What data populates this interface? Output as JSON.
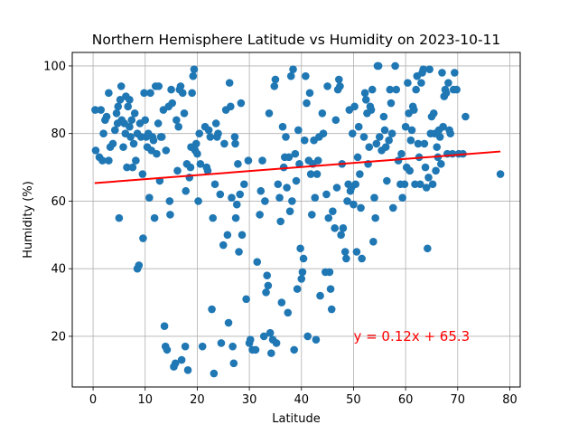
{
  "chart_data": {
    "type": "scatter",
    "title": "Northern Hemisphere Latitude vs Humidity on 2023-10-11",
    "xlabel": "Latitude",
    "ylabel": "Humidity (%)",
    "xlim": [
      -4,
      82
    ],
    "ylim": [
      5,
      104
    ],
    "xticks": [
      0,
      10,
      20,
      30,
      40,
      50,
      60,
      70,
      80
    ],
    "yticks": [
      20,
      40,
      60,
      80,
      100
    ],
    "grid": true,
    "marker_color": "#1f77b4",
    "regression": {
      "slope": 0.12,
      "intercept": 65.3,
      "x_range": [
        0.3,
        78.2
      ],
      "color": "#ff0000",
      "equation": "y = 0.12x + 65.3",
      "label_x": 50,
      "label_y": 20
    },
    "points": [
      [
        0.4,
        87
      ],
      [
        0.5,
        75
      ],
      [
        1.2,
        73
      ],
      [
        1.5,
        87
      ],
      [
        1.8,
        72
      ],
      [
        2.0,
        80
      ],
      [
        2.3,
        84
      ],
      [
        2.6,
        85
      ],
      [
        3.0,
        92
      ],
      [
        3.0,
        72
      ],
      [
        3.3,
        76
      ],
      [
        3.8,
        77
      ],
      [
        4.2,
        81
      ],
      [
        4.5,
        86
      ],
      [
        4.7,
        83
      ],
      [
        4.8,
        88
      ],
      [
        5.0,
        55
      ],
      [
        5.2,
        90
      ],
      [
        5.4,
        94
      ],
      [
        5.5,
        84
      ],
      [
        5.8,
        76
      ],
      [
        6.0,
        83
      ],
      [
        6.2,
        80
      ],
      [
        6.3,
        91
      ],
      [
        6.5,
        70
      ],
      [
        6.7,
        88
      ],
      [
        7.0,
        90
      ],
      [
        7.0,
        82
      ],
      [
        7.2,
        79
      ],
      [
        7.4,
        84
      ],
      [
        7.6,
        70
      ],
      [
        7.8,
        77
      ],
      [
        8.0,
        86
      ],
      [
        8.2,
        72
      ],
      [
        8.5,
        80
      ],
      [
        8.5,
        40
      ],
      [
        8.8,
        41
      ],
      [
        9.0,
        83
      ],
      [
        9.2,
        79
      ],
      [
        9.5,
        68
      ],
      [
        9.6,
        49
      ],
      [
        9.8,
        92
      ],
      [
        10.0,
        84
      ],
      [
        10.2,
        79
      ],
      [
        10.4,
        76
      ],
      [
        10.6,
        80
      ],
      [
        10.8,
        61
      ],
      [
        11.0,
        92
      ],
      [
        11.2,
        75
      ],
      [
        11.4,
        79
      ],
      [
        11.6,
        78
      ],
      [
        11.8,
        55
      ],
      [
        12.0,
        94
      ],
      [
        12.2,
        74
      ],
      [
        12.5,
        83
      ],
      [
        12.6,
        94
      ],
      [
        12.8,
        66
      ],
      [
        13.0,
        79
      ],
      [
        13.2,
        79
      ],
      [
        13.5,
        87
      ],
      [
        13.7,
        23
      ],
      [
        13.9,
        17
      ],
      [
        14.0,
        75
      ],
      [
        14.2,
        16
      ],
      [
        14.5,
        88
      ],
      [
        14.7,
        60
      ],
      [
        14.8,
        56
      ],
      [
        15.0,
        93
      ],
      [
        15.2,
        89
      ],
      [
        15.5,
        11
      ],
      [
        15.8,
        12
      ],
      [
        16.0,
        84
      ],
      [
        16.2,
        69
      ],
      [
        16.4,
        82
      ],
      [
        16.6,
        93
      ],
      [
        16.8,
        94
      ],
      [
        17.0,
        13
      ],
      [
        17.2,
        92
      ],
      [
        17.5,
        86
      ],
      [
        17.7,
        17
      ],
      [
        17.8,
        63
      ],
      [
        18.0,
        71
      ],
      [
        18.2,
        10
      ],
      [
        18.5,
        67
      ],
      [
        18.7,
        70
      ],
      [
        18.8,
        76
      ],
      [
        19.0,
        92
      ],
      [
        19.2,
        97
      ],
      [
        19.4,
        99
      ],
      [
        19.6,
        75
      ],
      [
        19.8,
        77
      ],
      [
        20.0,
        74
      ],
      [
        20.2,
        60
      ],
      [
        20.4,
        80
      ],
      [
        20.6,
        71
      ],
      [
        21.0,
        17
      ],
      [
        21.5,
        82
      ],
      [
        21.8,
        70
      ],
      [
        22.0,
        69
      ],
      [
        22.2,
        81
      ],
      [
        22.5,
        79
      ],
      [
        22.8,
        28
      ],
      [
        23.0,
        55
      ],
      [
        23.2,
        9
      ],
      [
        23.4,
        65
      ],
      [
        23.6,
        83
      ],
      [
        23.8,
        79
      ],
      [
        24.0,
        80
      ],
      [
        24.4,
        62
      ],
      [
        24.6,
        18
      ],
      [
        25.0,
        47
      ],
      [
        25.2,
        77
      ],
      [
        25.5,
        87
      ],
      [
        25.8,
        50
      ],
      [
        26.0,
        24
      ],
      [
        26.2,
        95
      ],
      [
        26.4,
        88
      ],
      [
        26.6,
        61
      ],
      [
        26.8,
        17
      ],
      [
        27.0,
        12
      ],
      [
        27.2,
        79
      ],
      [
        27.3,
        77
      ],
      [
        27.4,
        55
      ],
      [
        27.6,
        59
      ],
      [
        27.8,
        71
      ],
      [
        28.0,
        45
      ],
      [
        28.2,
        62
      ],
      [
        28.4,
        89
      ],
      [
        28.6,
        50
      ],
      [
        29.0,
        65
      ],
      [
        29.4,
        31
      ],
      [
        29.8,
        72
      ],
      [
        30.0,
        18
      ],
      [
        30.2,
        19
      ],
      [
        30.6,
        16
      ],
      [
        31.2,
        16
      ],
      [
        31.5,
        42
      ],
      [
        32.0,
        56
      ],
      [
        32.2,
        63
      ],
      [
        32.5,
        72
      ],
      [
        32.8,
        20
      ],
      [
        33.0,
        60
      ],
      [
        33.2,
        33
      ],
      [
        33.4,
        38
      ],
      [
        33.6,
        35
      ],
      [
        33.8,
        86
      ],
      [
        34.0,
        21
      ],
      [
        34.2,
        15
      ],
      [
        34.5,
        19
      ],
      [
        34.8,
        94
      ],
      [
        35.0,
        96
      ],
      [
        35.2,
        18
      ],
      [
        35.5,
        65
      ],
      [
        35.8,
        61
      ],
      [
        36.0,
        54
      ],
      [
        36.2,
        30
      ],
      [
        36.4,
        82
      ],
      [
        36.6,
        70
      ],
      [
        36.8,
        73
      ],
      [
        37.0,
        79
      ],
      [
        37.2,
        64
      ],
      [
        37.4,
        27
      ],
      [
        37.6,
        73
      ],
      [
        37.8,
        57
      ],
      [
        38.0,
        97
      ],
      [
        38.2,
        60
      ],
      [
        38.4,
        99
      ],
      [
        38.6,
        16
      ],
      [
        38.8,
        74
      ],
      [
        39.0,
        66
      ],
      [
        39.2,
        34
      ],
      [
        39.4,
        81
      ],
      [
        39.6,
        71
      ],
      [
        39.8,
        46
      ],
      [
        40.0,
        37
      ],
      [
        40.2,
        39
      ],
      [
        40.4,
        43
      ],
      [
        40.6,
        78
      ],
      [
        40.8,
        97
      ],
      [
        41.0,
        89
      ],
      [
        41.2,
        20
      ],
      [
        41.4,
        72
      ],
      [
        41.6,
        92
      ],
      [
        41.8,
        68
      ],
      [
        42.0,
        56
      ],
      [
        42.2,
        71
      ],
      [
        42.4,
        78
      ],
      [
        42.6,
        61
      ],
      [
        42.8,
        19
      ],
      [
        43.0,
        68
      ],
      [
        43.2,
        72
      ],
      [
        43.4,
        79
      ],
      [
        43.6,
        32
      ],
      [
        44.0,
        86
      ],
      [
        44.2,
        80
      ],
      [
        44.6,
        39
      ],
      [
        44.8,
        62
      ],
      [
        45.0,
        94
      ],
      [
        45.2,
        55
      ],
      [
        45.4,
        39
      ],
      [
        45.6,
        34
      ],
      [
        45.8,
        28
      ],
      [
        46.0,
        57
      ],
      [
        46.4,
        52
      ],
      [
        46.6,
        84
      ],
      [
        46.8,
        64
      ],
      [
        47.0,
        93
      ],
      [
        47.2,
        96
      ],
      [
        47.4,
        94
      ],
      [
        47.6,
        50
      ],
      [
        47.8,
        71
      ],
      [
        48.0,
        52
      ],
      [
        48.4,
        45
      ],
      [
        48.6,
        43
      ],
      [
        48.8,
        60
      ],
      [
        49.0,
        65
      ],
      [
        49.2,
        87
      ],
      [
        49.4,
        63
      ],
      [
        49.6,
        64
      ],
      [
        49.8,
        80
      ],
      [
        50.0,
        59
      ],
      [
        50.2,
        88
      ],
      [
        50.4,
        65
      ],
      [
        50.6,
        45
      ],
      [
        50.8,
        73
      ],
      [
        51.0,
        82
      ],
      [
        51.2,
        68
      ],
      [
        51.4,
        58
      ],
      [
        51.6,
        43
      ],
      [
        52.0,
        79
      ],
      [
        52.2,
        92
      ],
      [
        52.4,
        90
      ],
      [
        52.6,
        86
      ],
      [
        52.8,
        71
      ],
      [
        53.0,
        76
      ],
      [
        53.2,
        88
      ],
      [
        53.4,
        87
      ],
      [
        53.6,
        93
      ],
      [
        53.8,
        48
      ],
      [
        54.0,
        61
      ],
      [
        54.2,
        55
      ],
      [
        54.4,
        77
      ],
      [
        54.6,
        100
      ],
      [
        54.8,
        100
      ],
      [
        55.0,
        79
      ],
      [
        55.4,
        75
      ],
      [
        55.8,
        85
      ],
      [
        56.0,
        81
      ],
      [
        56.2,
        76
      ],
      [
        56.4,
        66
      ],
      [
        56.8,
        78
      ],
      [
        57.0,
        93
      ],
      [
        57.2,
        89
      ],
      [
        57.4,
        80
      ],
      [
        57.6,
        58
      ],
      [
        58.0,
        100
      ],
      [
        58.2,
        93
      ],
      [
        58.6,
        72
      ],
      [
        59.0,
        65
      ],
      [
        59.2,
        74
      ],
      [
        59.4,
        61
      ],
      [
        59.8,
        65
      ],
      [
        60.0,
        82
      ],
      [
        60.2,
        70
      ],
      [
        60.4,
        95
      ],
      [
        60.6,
        86
      ],
      [
        60.8,
        69
      ],
      [
        61.0,
        78
      ],
      [
        61.2,
        81
      ],
      [
        61.4,
        88
      ],
      [
        61.6,
        87
      ],
      [
        61.8,
        65
      ],
      [
        62.0,
        93
      ],
      [
        62.2,
        97
      ],
      [
        62.4,
        77
      ],
      [
        62.6,
        73
      ],
      [
        62.8,
        65
      ],
      [
        63.0,
        95
      ],
      [
        63.2,
        98
      ],
      [
        63.4,
        99
      ],
      [
        63.6,
        77
      ],
      [
        63.8,
        70
      ],
      [
        64.0,
        64
      ],
      [
        64.2,
        46
      ],
      [
        64.4,
        67
      ],
      [
        64.6,
        99
      ],
      [
        64.8,
        80
      ],
      [
        65.0,
        85
      ],
      [
        65.2,
        65
      ],
      [
        65.4,
        86
      ],
      [
        65.6,
        80
      ],
      [
        65.8,
        69
      ],
      [
        66.0,
        76
      ],
      [
        66.2,
        73
      ],
      [
        66.4,
        81
      ],
      [
        66.6,
        79
      ],
      [
        66.8,
        71
      ],
      [
        67.0,
        98
      ],
      [
        67.2,
        82
      ],
      [
        67.4,
        91
      ],
      [
        67.6,
        93
      ],
      [
        67.8,
        92
      ],
      [
        68.0,
        74
      ],
      [
        68.2,
        95
      ],
      [
        68.4,
        81
      ],
      [
        68.6,
        80
      ],
      [
        69.0,
        74
      ],
      [
        69.2,
        93
      ],
      [
        69.4,
        98
      ],
      [
        69.8,
        93
      ],
      [
        70.2,
        74
      ],
      [
        71.0,
        74
      ],
      [
        71.5,
        85
      ],
      [
        78.2,
        68
      ]
    ]
  }
}
